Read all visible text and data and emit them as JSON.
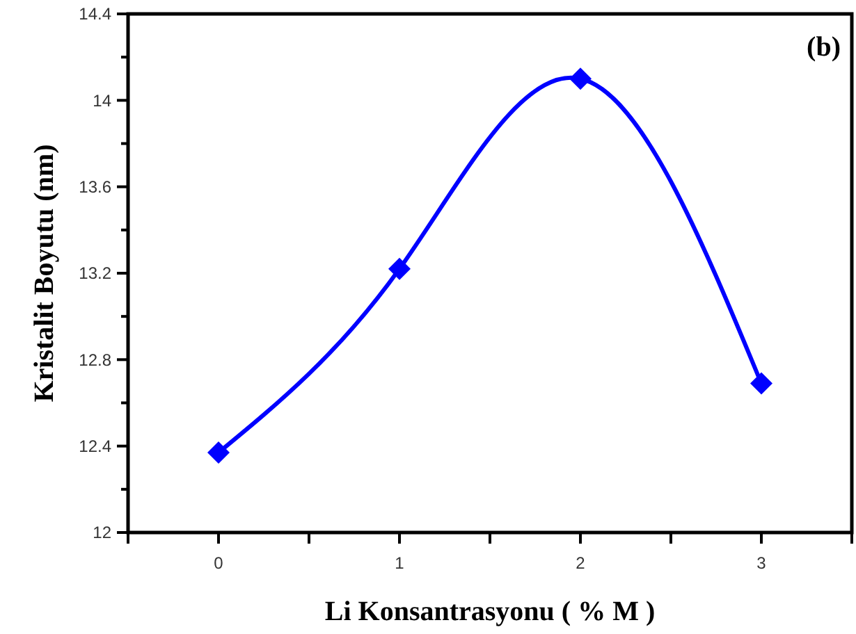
{
  "chart_data": {
    "type": "line",
    "xlabel": "Li Konsantrasyonu ( % M )",
    "ylabel": "Kristalit Boyutu (nm)",
    "annotations": [
      "(b)"
    ],
    "x": [
      0,
      1,
      2,
      3
    ],
    "series": [
      {
        "color": "#0000ff",
        "values": [
          12.37,
          13.22,
          14.1,
          12.69
        ]
      }
    ],
    "xlim": [
      -0.5,
      3.5
    ],
    "xticks": [
      {
        "value": -0.5,
        "label": null
      },
      0,
      {
        "value": 0.5,
        "label": null
      },
      1,
      {
        "value": 1.5,
        "label": null
      },
      2,
      {
        "value": 2.5,
        "label": null
      },
      3,
      {
        "value": 3.5,
        "label": null
      }
    ],
    "ylim": [
      12,
      14.4
    ],
    "yticks": [
      12,
      {
        "value": 12.2,
        "label": null
      },
      12.4,
      {
        "value": 12.6,
        "label": null
      },
      12.8,
      {
        "value": 13,
        "label": null
      },
      13.2,
      {
        "value": 13.4,
        "label": null
      },
      13.6,
      {
        "value": 13.8,
        "label": null
      },
      14,
      {
        "value": 14.2,
        "label": null
      },
      14.4
    ],
    "marker": "diamond",
    "line_style": "solid"
  }
}
